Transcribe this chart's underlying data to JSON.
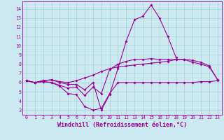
{
  "xlabel": "Windchill (Refroidissement éolien,°C)",
  "bg_color": "#cce8f0",
  "line_color": "#990099",
  "grid_color": "#99cccc",
  "xlim": [
    -0.5,
    23.5
  ],
  "ylim": [
    2.5,
    14.8
  ],
  "xticks": [
    0,
    1,
    2,
    3,
    4,
    5,
    6,
    7,
    8,
    9,
    10,
    11,
    12,
    13,
    14,
    15,
    16,
    17,
    18,
    19,
    20,
    21,
    22,
    23
  ],
  "yticks": [
    3,
    4,
    5,
    6,
    7,
    8,
    9,
    10,
    11,
    12,
    13,
    14
  ],
  "curves": [
    [
      6.2,
      6.0,
      6.2,
      6.3,
      6.0,
      5.8,
      5.8,
      5.2,
      6.0,
      3.0,
      4.7,
      7.5,
      10.5,
      12.8,
      13.2,
      14.4,
      13.0,
      11.0,
      8.7,
      null,
      null,
      null,
      null,
      null
    ],
    [
      6.2,
      6.0,
      6.2,
      6.3,
      6.1,
      6.0,
      6.2,
      6.5,
      6.8,
      7.2,
      7.5,
      7.7,
      7.8,
      7.9,
      8.0,
      8.1,
      8.2,
      8.3,
      8.5,
      8.5,
      8.4,
      8.2,
      7.8,
      6.3
    ],
    [
      6.2,
      6.0,
      6.1,
      6.0,
      5.7,
      5.4,
      5.5,
      4.6,
      5.5,
      4.8,
      7.4,
      8.0,
      8.3,
      8.5,
      8.5,
      8.6,
      8.5,
      8.5,
      8.5,
      8.5,
      8.2,
      8.0,
      7.7,
      6.3
    ],
    [
      6.2,
      6.0,
      6.1,
      6.0,
      5.6,
      4.8,
      4.7,
      3.4,
      3.0,
      3.2,
      4.8,
      6.0,
      6.0,
      6.0,
      6.0,
      6.0,
      6.0,
      6.0,
      6.0,
      6.0,
      6.0,
      6.1,
      6.1,
      6.2
    ]
  ]
}
